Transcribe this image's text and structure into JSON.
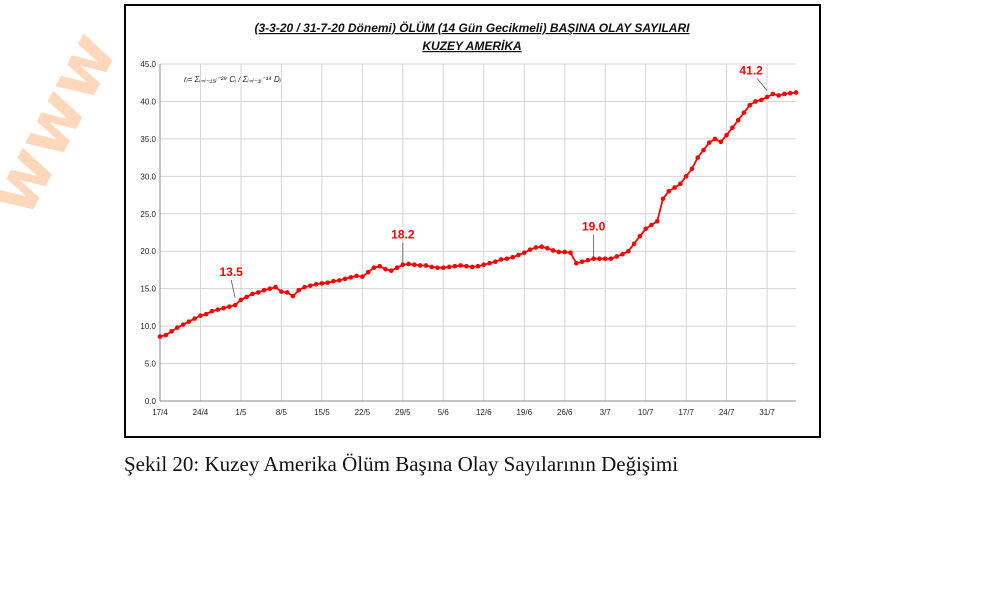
{
  "chart_data": {
    "type": "line",
    "title": "(3-3-20 / 31-7-20 Dönemi) ÖLÜM (14 Gün Gecikmeli) BAŞINA OLAY SAYILARI",
    "subtitle": "KUZEY AMERİKA",
    "formula": "rᵢ= Σᵢ₌ᵢ₋₁₅ᵢ⁻²⁹ Cᵢ / Σᵢ₌ᵢ₋₁ᵢ⁻¹⁴ Dᵢ",
    "xlabel": "",
    "ylabel": "",
    "ylim": [
      0,
      45
    ],
    "yticks": [
      "0.0",
      "5.0",
      "10.0",
      "15.0",
      "20.0",
      "25.0",
      "30.0",
      "35.0",
      "40.0",
      "45.0"
    ],
    "xticks": [
      "17/4",
      "24/4",
      "1/5",
      "8/5",
      "15/5",
      "22/5",
      "29/5",
      "5/6",
      "12/6",
      "19/6",
      "26/6",
      "3/7",
      "10/7",
      "17/7",
      "24/7",
      "31/7"
    ],
    "grid": true,
    "line_color": "#ff0000",
    "annotation_color": "#ff0000",
    "annotations": [
      {
        "label": "13.5",
        "x": 13,
        "y": 13.5
      },
      {
        "label": "18.2",
        "x": 42,
        "y": 18.2
      },
      {
        "label": "19.0",
        "x": 75,
        "y": 19.0
      },
      {
        "label": "41.2",
        "x": 105,
        "y": 41.2
      }
    ],
    "series": [
      {
        "values": [
          8.6,
          8.8,
          9.3,
          9.8,
          10.2,
          10.6,
          11.0,
          11.4,
          11.6,
          12.0,
          12.2,
          12.4,
          12.6,
          12.8,
          13.5,
          13.9,
          14.3,
          14.5,
          14.8,
          15.0,
          15.2,
          14.6,
          14.5,
          14.0,
          14.8,
          15.2,
          15.4,
          15.6,
          15.7,
          15.8,
          16.0,
          16.1,
          16.3,
          16.5,
          16.7,
          16.6,
          17.2,
          17.8,
          18.0,
          17.6,
          17.4,
          17.8,
          18.2,
          18.3,
          18.2,
          18.1,
          18.1,
          17.9,
          17.8,
          17.8,
          17.9,
          18.0,
          18.1,
          18.0,
          17.9,
          18.0,
          18.2,
          18.4,
          18.6,
          18.9,
          19.0,
          19.2,
          19.5,
          19.8,
          20.2,
          20.5,
          20.6,
          20.4,
          20.1,
          19.9,
          19.9,
          19.8,
          18.4,
          18.6,
          18.8,
          19.0,
          19.0,
          19.0,
          19.0,
          19.3,
          19.6,
          20.0,
          21.0,
          22.0,
          23.0,
          23.5,
          24.0,
          27.0,
          28.0,
          28.5,
          29.0,
          30.0,
          31.0,
          32.5,
          33.5,
          34.5,
          35.0,
          34.6,
          35.5,
          36.5,
          37.5,
          38.5,
          39.5,
          40.0,
          40.2,
          40.6,
          41.0,
          40.8,
          41.0,
          41.1,
          41.2
        ]
      }
    ]
  },
  "caption": "Şekil 20: Kuzey Amerika Ölüm Başına Olay Sayılarının Değişimi",
  "watermark": "www"
}
